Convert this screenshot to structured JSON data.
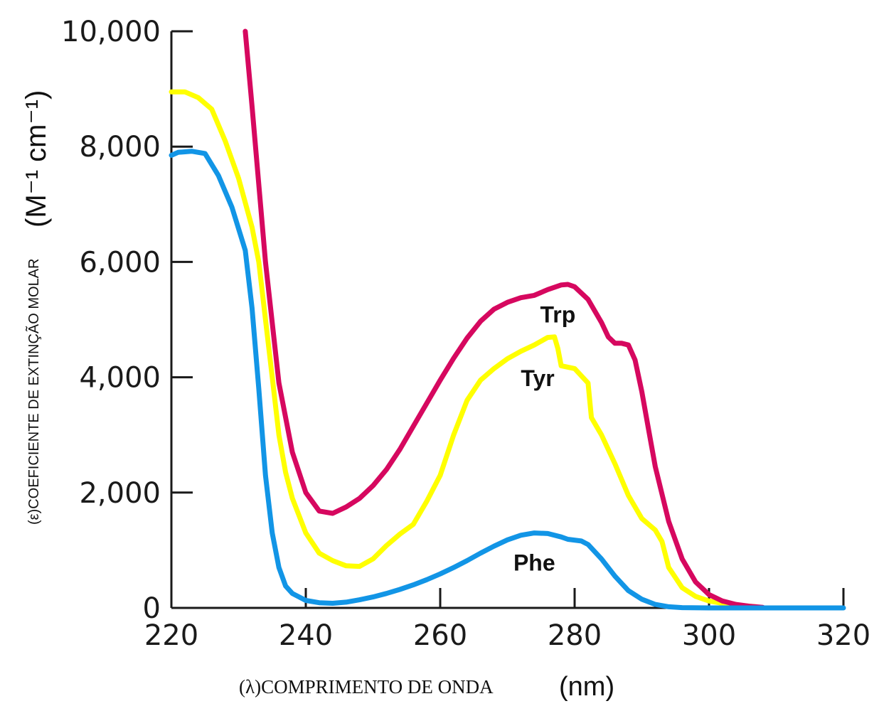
{
  "chart_data": {
    "type": "line",
    "x_axis": {
      "label_prefix": "(λ)COMPRIMENTO DE ONDA",
      "label_unit": "(nm)",
      "ticks": [
        "220",
        "240",
        "260",
        "280",
        "300",
        "320"
      ],
      "range": [
        220,
        320
      ]
    },
    "y_axis": {
      "label_prefix": "(ε)COEFICIENTE DE EXTINÇÃO MOLAR",
      "label_unit": "(M⁻¹ cm⁻¹)",
      "ticks": [
        "0",
        "2,000",
        "4,000",
        "6,000",
        "8,000",
        "10,000"
      ],
      "range": [
        0,
        10000
      ]
    },
    "series": [
      {
        "name": "Trp",
        "color": "#d6085f",
        "points": [
          [
            231,
            10000
          ],
          [
            232,
            8700
          ],
          [
            234,
            6000
          ],
          [
            236,
            3900
          ],
          [
            238,
            2700
          ],
          [
            240,
            2000
          ],
          [
            242,
            1680
          ],
          [
            244,
            1640
          ],
          [
            246,
            1750
          ],
          [
            248,
            1900
          ],
          [
            250,
            2120
          ],
          [
            252,
            2400
          ],
          [
            254,
            2750
          ],
          [
            256,
            3150
          ],
          [
            258,
            3550
          ],
          [
            260,
            3950
          ],
          [
            262,
            4330
          ],
          [
            264,
            4680
          ],
          [
            266,
            4970
          ],
          [
            268,
            5180
          ],
          [
            270,
            5300
          ],
          [
            272,
            5380
          ],
          [
            274,
            5420
          ],
          [
            276,
            5520
          ],
          [
            278,
            5600
          ],
          [
            279,
            5610
          ],
          [
            280,
            5570
          ],
          [
            282,
            5350
          ],
          [
            284,
            4950
          ],
          [
            285,
            4700
          ],
          [
            286,
            4590
          ],
          [
            287,
            4590
          ],
          [
            288,
            4560
          ],
          [
            289,
            4300
          ],
          [
            290,
            3750
          ],
          [
            291,
            3100
          ],
          [
            292,
            2450
          ],
          [
            294,
            1500
          ],
          [
            296,
            850
          ],
          [
            298,
            450
          ],
          [
            300,
            230
          ],
          [
            302,
            120
          ],
          [
            304,
            60
          ],
          [
            306,
            30
          ],
          [
            308,
            10
          ]
        ]
      },
      {
        "name": "Tyr",
        "color": "#ffff00",
        "points": [
          [
            220,
            8950
          ],
          [
            222,
            8950
          ],
          [
            224,
            8850
          ],
          [
            226,
            8650
          ],
          [
            228,
            8100
          ],
          [
            230,
            7450
          ],
          [
            232,
            6600
          ],
          [
            233,
            6000
          ],
          [
            234,
            5000
          ],
          [
            235,
            4000
          ],
          [
            236,
            3000
          ],
          [
            237,
            2350
          ],
          [
            238,
            1900
          ],
          [
            240,
            1300
          ],
          [
            242,
            950
          ],
          [
            244,
            820
          ],
          [
            246,
            730
          ],
          [
            248,
            720
          ],
          [
            250,
            850
          ],
          [
            252,
            1080
          ],
          [
            254,
            1280
          ],
          [
            256,
            1450
          ],
          [
            258,
            1850
          ],
          [
            260,
            2300
          ],
          [
            262,
            3000
          ],
          [
            264,
            3600
          ],
          [
            266,
            3950
          ],
          [
            268,
            4150
          ],
          [
            270,
            4320
          ],
          [
            272,
            4450
          ],
          [
            274,
            4560
          ],
          [
            276,
            4690
          ],
          [
            277,
            4700
          ],
          [
            277.5,
            4500
          ],
          [
            278,
            4200
          ],
          [
            280,
            4150
          ],
          [
            282,
            3900
          ],
          [
            282.5,
            3300
          ],
          [
            284,
            3000
          ],
          [
            286,
            2500
          ],
          [
            288,
            1950
          ],
          [
            290,
            1550
          ],
          [
            292,
            1350
          ],
          [
            293,
            1150
          ],
          [
            294,
            700
          ],
          [
            296,
            350
          ],
          [
            298,
            200
          ],
          [
            300,
            120
          ],
          [
            302,
            80
          ],
          [
            304,
            50
          ],
          [
            306,
            30
          ],
          [
            307,
            20
          ]
        ]
      },
      {
        "name": "Phe",
        "color": "#1295e6",
        "points": [
          [
            220,
            7850
          ],
          [
            221,
            7900
          ],
          [
            223,
            7920
          ],
          [
            225,
            7880
          ],
          [
            227,
            7500
          ],
          [
            229,
            6950
          ],
          [
            231,
            6200
          ],
          [
            232,
            5200
          ],
          [
            233,
            3800
          ],
          [
            234,
            2300
          ],
          [
            235,
            1300
          ],
          [
            236,
            700
          ],
          [
            237,
            380
          ],
          [
            238,
            250
          ],
          [
            240,
            130
          ],
          [
            242,
            90
          ],
          [
            244,
            80
          ],
          [
            246,
            100
          ],
          [
            248,
            140
          ],
          [
            250,
            190
          ],
          [
            252,
            250
          ],
          [
            254,
            320
          ],
          [
            256,
            400
          ],
          [
            258,
            490
          ],
          [
            260,
            590
          ],
          [
            262,
            700
          ],
          [
            264,
            820
          ],
          [
            266,
            950
          ],
          [
            268,
            1070
          ],
          [
            270,
            1180
          ],
          [
            272,
            1260
          ],
          [
            274,
            1300
          ],
          [
            276,
            1290
          ],
          [
            278,
            1230
          ],
          [
            279,
            1190
          ],
          [
            281,
            1160
          ],
          [
            282,
            1100
          ],
          [
            284,
            850
          ],
          [
            286,
            550
          ],
          [
            288,
            300
          ],
          [
            290,
            150
          ],
          [
            292,
            60
          ],
          [
            294,
            20
          ],
          [
            296,
            5
          ],
          [
            300,
            0
          ],
          [
            310,
            0
          ],
          [
            320,
            0
          ]
        ]
      }
    ],
    "grid": false,
    "legend": "inline labels"
  },
  "colors": {
    "axis": "#1a1a1a",
    "background": "#ffffff"
  }
}
